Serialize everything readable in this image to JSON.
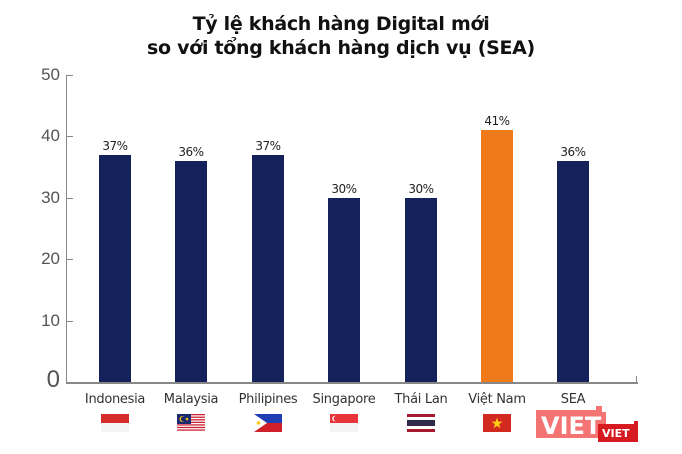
{
  "title": {
    "line1": "Tỷ lệ khách hàng Digital mới",
    "line2": "so với tổng khách hàng dịch vụ (SEA)"
  },
  "y_axis": {
    "ticks": [
      "50",
      "40",
      "30",
      "20",
      "10",
      "0"
    ]
  },
  "bars": [
    {
      "label": "Indonesia",
      "value": 37,
      "value_label": "37%",
      "color": "#14215a",
      "flag": "indonesia-flag"
    },
    {
      "label": "Malaysia",
      "value": 36,
      "value_label": "36%",
      "color": "#14215a",
      "flag": "malaysia-flag"
    },
    {
      "label": "Philipines",
      "value": 37,
      "value_label": "37%",
      "color": "#14215a",
      "flag": "philippines-flag"
    },
    {
      "label": "Singapore",
      "value": 30,
      "value_label": "30%",
      "color": "#14215a",
      "flag": "singapore-flag"
    },
    {
      "label": "Thái Lan",
      "value": 30,
      "value_label": "30%",
      "color": "#14215a",
      "flag": "thailand-flag"
    },
    {
      "label": "Việt Nam",
      "value": 41,
      "value_label": "41%",
      "color": "#ee7a1a",
      "flag": "vietnam-flag"
    },
    {
      "label": "SEA",
      "value": 36,
      "value_label": "36%",
      "color": "#14215a",
      "flag": null
    }
  ],
  "watermark": {
    "text_large": "VIET",
    "text_small": "VIET"
  },
  "chart_data": {
    "type": "bar",
    "title": "Tỷ lệ khách hàng Digital mới so với tổng khách hàng dịch vụ (SEA)",
    "categories": [
      "Indonesia",
      "Malaysia",
      "Philipines",
      "Singapore",
      "Thái Lan",
      "Việt Nam",
      "SEA"
    ],
    "values": [
      37,
      36,
      37,
      30,
      30,
      41,
      36
    ],
    "data_labels": [
      "37%",
      "36%",
      "37%",
      "30%",
      "30%",
      "41%",
      "36%"
    ],
    "xlabel": "",
    "ylabel": "",
    "ylim": [
      0,
      50
    ],
    "yticks": [
      0,
      10,
      20,
      30,
      40,
      50
    ],
    "grid": false,
    "legend": null,
    "highlight": {
      "category": "Việt Nam",
      "color": "#ee7a1a"
    },
    "default_color": "#14215a"
  }
}
